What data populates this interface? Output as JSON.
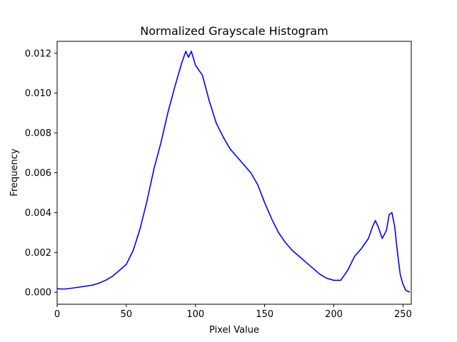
{
  "chart_data": {
    "type": "line",
    "title": "Normalized Grayscale Histogram",
    "xlabel": "Pixel Value",
    "ylabel": "Frequency",
    "xlim": [
      0,
      256
    ],
    "ylim": [
      -0.0006,
      0.0126
    ],
    "xticks": [
      0,
      50,
      100,
      150,
      200,
      250
    ],
    "yticks": [
      0.0,
      0.002,
      0.004,
      0.006,
      0.008,
      0.01,
      0.012
    ],
    "ytick_labels": [
      "0.000",
      "0.002",
      "0.004",
      "0.006",
      "0.008",
      "0.010",
      "0.012"
    ],
    "grid": false,
    "legend": "none",
    "series": [
      {
        "color": "#0000ff",
        "x": [
          0,
          5,
          10,
          15,
          20,
          25,
          30,
          35,
          40,
          45,
          50,
          55,
          60,
          65,
          70,
          75,
          80,
          85,
          90,
          93,
          95,
          97,
          100,
          105,
          110,
          115,
          120,
          125,
          130,
          135,
          140,
          145,
          150,
          155,
          160,
          165,
          170,
          175,
          180,
          185,
          190,
          195,
          200,
          205,
          210,
          215,
          220,
          225,
          228,
          230,
          232,
          235,
          238,
          240,
          242,
          244,
          246,
          248,
          250,
          252,
          254,
          255
        ],
        "y": [
          0.00018,
          0.00016,
          0.0002,
          0.00025,
          0.0003,
          0.00035,
          0.00045,
          0.0006,
          0.0008,
          0.0011,
          0.0014,
          0.0021,
          0.0032,
          0.0046,
          0.0062,
          0.0075,
          0.009,
          0.0103,
          0.0115,
          0.0121,
          0.0118,
          0.0121,
          0.0114,
          0.0109,
          0.0096,
          0.0085,
          0.0078,
          0.0072,
          0.0068,
          0.0064,
          0.006,
          0.0054,
          0.0045,
          0.0037,
          0.003,
          0.0025,
          0.0021,
          0.0018,
          0.0015,
          0.0012,
          0.0009,
          0.0007,
          0.0006,
          0.0006,
          0.0011,
          0.0018,
          0.0022,
          0.0027,
          0.0033,
          0.0036,
          0.0033,
          0.0027,
          0.0031,
          0.0039,
          0.004,
          0.0033,
          0.002,
          0.0009,
          0.0004,
          0.0001,
          3e-05,
          2e-05
        ]
      }
    ]
  }
}
